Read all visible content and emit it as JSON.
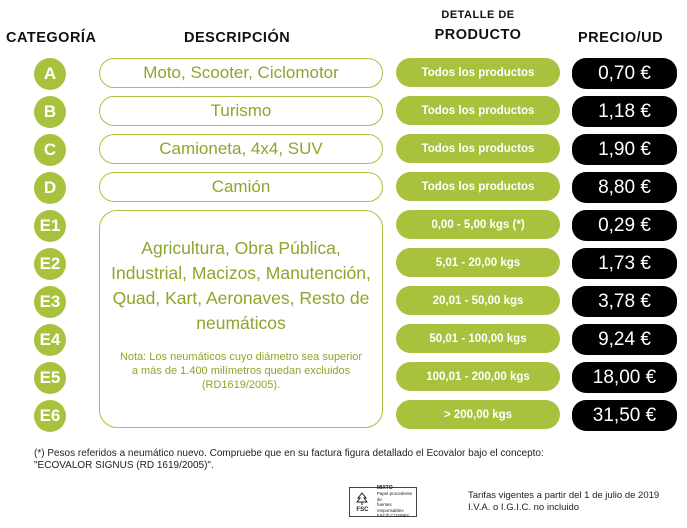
{
  "headers": {
    "category": "CATEGORÍA",
    "description": "DESCRIPCIÓN",
    "detail_line1": "DETALLE DE",
    "detail_line2": "PRODUCTO",
    "price": "PRECIO/UD"
  },
  "categories": [
    "A",
    "B",
    "C",
    "D",
    "E1",
    "E2",
    "E3",
    "E4",
    "E5",
    "E6"
  ],
  "descriptions": {
    "A": "Moto, Scooter, Ciclomotor",
    "B": "Turismo",
    "C": "Camioneta, 4x4, SUV",
    "D": "Camión",
    "E_main": "Agricultura, Obra Pública, Industrial, Macizos, Manutención, Quad, Kart, Aeronaves, Resto de neumáticos",
    "E_note": "Nota: Los neumáticos cuyo diámetro sea superior a más de 1.400 milímetros quedan excluidos (RD1619/2005)."
  },
  "details": [
    "Todos los productos",
    "Todos los productos",
    "Todos los productos",
    "Todos los productos",
    "0,00 - 5,00 kgs (*)",
    "5,01 - 20,00 kgs",
    "20,01 - 50,00 kgs",
    "50,01 - 100,00 kgs",
    "100,01 - 200,00 kgs",
    "> 200,00 kgs"
  ],
  "prices": [
    "0,70 €",
    "1,18 €",
    "1,90 €",
    "8,80 €",
    "0,29 €",
    "1,73 €",
    "3,78 €",
    "9,24 €",
    "18,00 €",
    "31,50 €"
  ],
  "footnote_line1": "(*) Pesos referidos a neumático nuevo. Compruebe que en su factura figura detallado el Ecovalor bajo el concepto:",
  "footnote_line2": "\"ECOVALOR SIGNUS (RD 1619/2005)\".",
  "fsc": {
    "logo_text": "FSC",
    "mixto": "MIXTO",
    "line1": "Papel procedente de",
    "line2": "fuentes responsables",
    "code": "FSC® C104983"
  },
  "validity_line1": "Tarifas vigentes a partir del 1 de julio de 2019",
  "validity_line2": "I.V.A. o I.G.I.C. no incluido",
  "colors": {
    "accent_green": "#a9c23e",
    "text_green": "#8aa72b",
    "price_bg": "#000000"
  }
}
